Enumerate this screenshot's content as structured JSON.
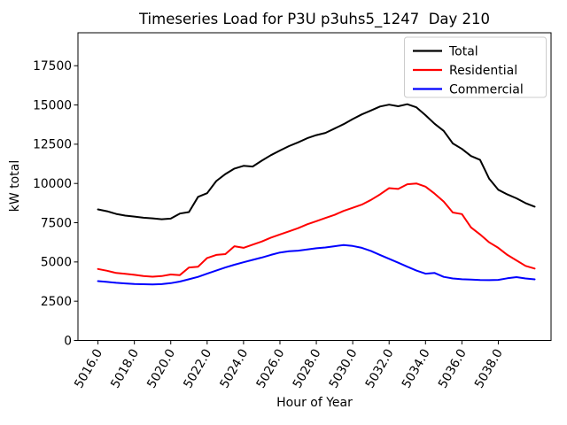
{
  "figure": {
    "title": "Timeseries Load for P3U p3uhs5_1247  Day 210",
    "xlabel": "Hour of Year",
    "ylabel": "kW total"
  },
  "legend": {
    "position": "upper right",
    "entries": [
      {
        "label": "Total",
        "color": "#000000"
      },
      {
        "label": "Residential",
        "color": "#ff0000"
      },
      {
        "label": "Commercial",
        "color": "#0000ff"
      }
    ]
  },
  "chart_data": {
    "type": "line",
    "title": "Timeseries Load for P3U p3uhs5_1247  Day 210",
    "xlabel": "Hour of Year",
    "ylabel": "kW total",
    "grid": false,
    "legend_position": "upper right",
    "xlim": [
      5014.9,
      5040.9
    ],
    "ylim": [
      0,
      19600
    ],
    "xticks": [
      {
        "value": 5016,
        "label": "5016.0"
      },
      {
        "value": 5018,
        "label": "5018.0"
      },
      {
        "value": 5020,
        "label": "5020.0"
      },
      {
        "value": 5022,
        "label": "5022.0"
      },
      {
        "value": 5024,
        "label": "5024.0"
      },
      {
        "value": 5026,
        "label": "5026.0"
      },
      {
        "value": 5028,
        "label": "5028.0"
      },
      {
        "value": 5030,
        "label": "5030.0"
      },
      {
        "value": 5032,
        "label": "5032.0"
      },
      {
        "value": 5034,
        "label": "5034.0"
      },
      {
        "value": 5036,
        "label": "5036.0"
      },
      {
        "value": 5038,
        "label": "5038.0"
      }
    ],
    "xtick_rotation": 60,
    "yticks": [
      {
        "value": 0,
        "label": "0"
      },
      {
        "value": 2500,
        "label": "2500"
      },
      {
        "value": 5000,
        "label": "5000"
      },
      {
        "value": 7500,
        "label": "7500"
      },
      {
        "value": 10000,
        "label": "10000"
      },
      {
        "value": 12500,
        "label": "12500"
      },
      {
        "value": 15000,
        "label": "15000"
      },
      {
        "value": 17500,
        "label": "17500"
      }
    ],
    "x": [
      5016.0,
      5016.5,
      5017.0,
      5017.5,
      5018.0,
      5018.5,
      5019.0,
      5019.5,
      5020.0,
      5020.5,
      5021.0,
      5021.5,
      5022.0,
      5022.5,
      5023.0,
      5023.5,
      5024.0,
      5024.5,
      5025.0,
      5025.5,
      5026.0,
      5026.5,
      5027.0,
      5027.5,
      5028.0,
      5028.5,
      5029.0,
      5029.5,
      5030.0,
      5030.5,
      5031.0,
      5031.5,
      5032.0,
      5032.5,
      5033.0,
      5033.5,
      5034.0,
      5034.5,
      5035.0,
      5035.5,
      5036.0,
      5036.5,
      5037.0,
      5037.5,
      5038.0,
      5038.5,
      5039.0,
      5039.5,
      5040.0
    ],
    "series": [
      {
        "name": "Total",
        "color": "#000000",
        "values": [
          8350,
          8230,
          8060,
          7950,
          7890,
          7820,
          7780,
          7720,
          7760,
          8080,
          8180,
          9150,
          9380,
          10150,
          10600,
          10950,
          11120,
          11080,
          11450,
          11800,
          12100,
          12380,
          12620,
          12880,
          13080,
          13220,
          13500,
          13780,
          14100,
          14400,
          14650,
          14900,
          15020,
          14920,
          15050,
          14850,
          14350,
          13800,
          13350,
          12550,
          12200,
          11750,
          11500,
          10300,
          9600,
          9300,
          9050,
          8750,
          8520
        ]
      },
      {
        "name": "Residential",
        "color": "#ff0000",
        "values": [
          4550,
          4440,
          4300,
          4240,
          4180,
          4100,
          4060,
          4100,
          4200,
          4160,
          4650,
          4700,
          5250,
          5450,
          5500,
          6000,
          5900,
          6100,
          6300,
          6550,
          6750,
          6950,
          7150,
          7400,
          7600,
          7800,
          8000,
          8250,
          8450,
          8650,
          8950,
          9300,
          9700,
          9650,
          9950,
          10000,
          9800,
          9350,
          8850,
          8150,
          8050,
          7200,
          6750,
          6250,
          5900,
          5450,
          5100,
          4750,
          4580
        ]
      },
      {
        "name": "Commercial",
        "color": "#0000ff",
        "values": [
          3780,
          3730,
          3670,
          3630,
          3600,
          3580,
          3570,
          3590,
          3650,
          3750,
          3900,
          4050,
          4250,
          4450,
          4650,
          4820,
          4980,
          5130,
          5280,
          5450,
          5600,
          5680,
          5720,
          5800,
          5870,
          5920,
          6000,
          6080,
          6020,
          5900,
          5700,
          5450,
          5200,
          4950,
          4700,
          4450,
          4250,
          4300,
          4050,
          3950,
          3900,
          3880,
          3850,
          3840,
          3860,
          3960,
          4030,
          3950,
          3890
        ]
      }
    ]
  }
}
